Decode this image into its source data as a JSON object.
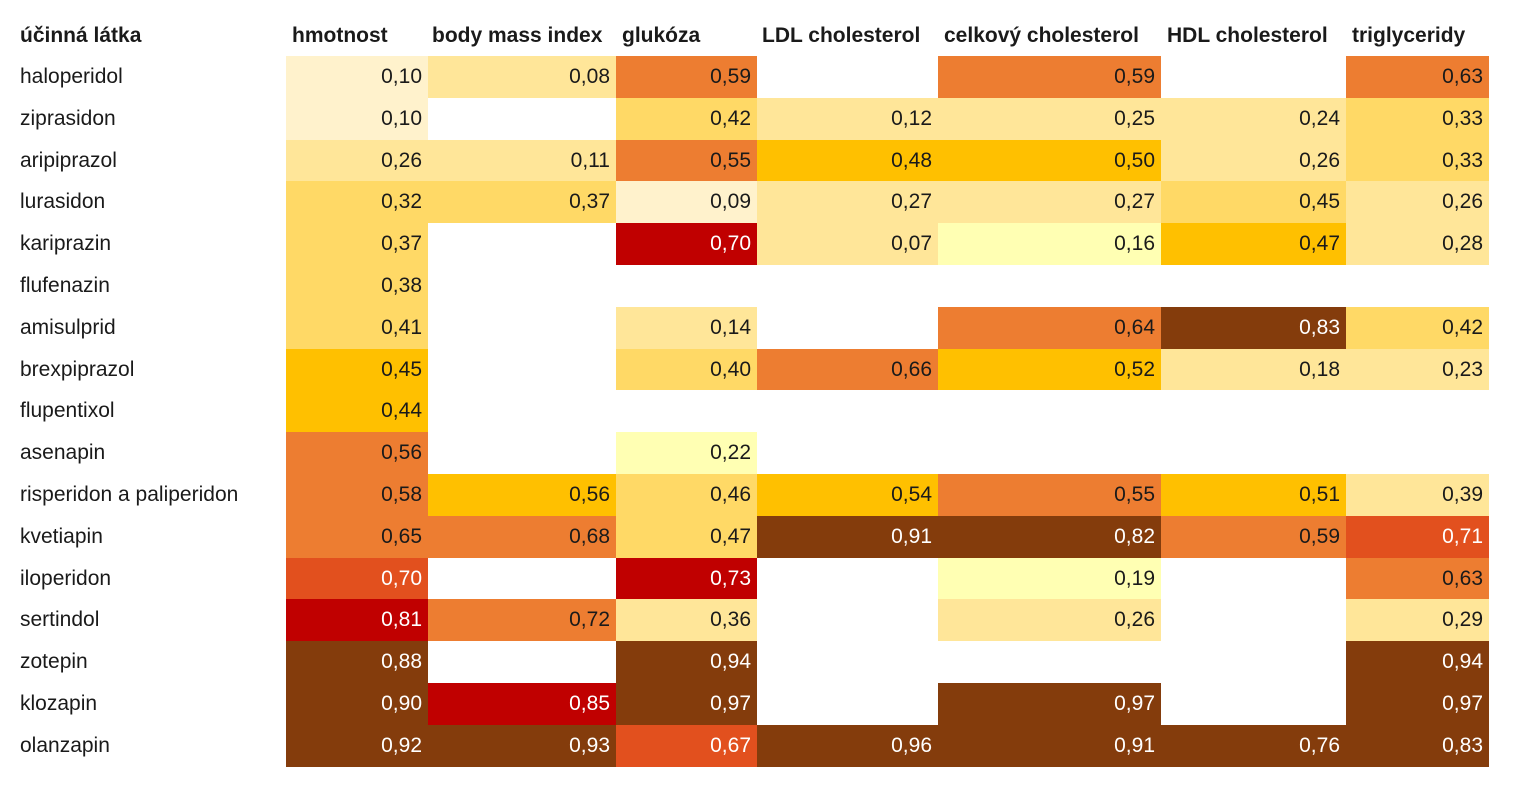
{
  "chart_data": {
    "type": "heatmap",
    "corner_label": "účinná látka",
    "columns": [
      "hmotnost",
      "body mass index",
      "glukóza",
      "LDL cholesterol",
      "celkový cholesterol",
      "HDL cholesterol",
      "triglyceridy"
    ],
    "rows": [
      {
        "name": "haloperidol",
        "values": [
          "0,10",
          "0,08",
          "0,59",
          null,
          "0,59",
          null,
          "0,63"
        ]
      },
      {
        "name": "ziprasidon",
        "values": [
          "0,10",
          null,
          "0,42",
          "0,12",
          "0,25",
          "0,24",
          "0,33"
        ]
      },
      {
        "name": "aripiprazol",
        "values": [
          "0,26",
          "0,11",
          "0,55",
          "0,48",
          "0,50",
          "0,26",
          "0,33"
        ]
      },
      {
        "name": "lurasidon",
        "values": [
          "0,32",
          "0,37",
          "0,09",
          "0,27",
          "0,27",
          "0,45",
          "0,26"
        ]
      },
      {
        "name": "kariprazin",
        "values": [
          "0,37",
          null,
          "0,70",
          "0,07",
          "0,16",
          "0,47",
          "0,28"
        ]
      },
      {
        "name": "flufenazin",
        "values": [
          "0,38",
          null,
          null,
          null,
          null,
          null,
          null
        ]
      },
      {
        "name": "amisulprid",
        "values": [
          "0,41",
          null,
          "0,14",
          null,
          "0,64",
          "0,83",
          "0,42"
        ]
      },
      {
        "name": "brexpiprazol",
        "values": [
          "0,45",
          null,
          "0,40",
          "0,66",
          "0,52",
          "0,18",
          "0,23"
        ]
      },
      {
        "name": "flupentixol",
        "values": [
          "0,44",
          null,
          null,
          null,
          null,
          null,
          null
        ]
      },
      {
        "name": "asenapin",
        "values": [
          "0,56",
          null,
          "0,22",
          null,
          null,
          null,
          null
        ]
      },
      {
        "name": "risperidon a paliperidon",
        "values": [
          "0,58",
          "0,56",
          "0,46",
          "0,54",
          "0,55",
          "0,51",
          "0,39"
        ]
      },
      {
        "name": "kvetiapin",
        "values": [
          "0,65",
          "0,68",
          "0,47",
          "0,91",
          "0,82",
          "0,59",
          "0,71"
        ]
      },
      {
        "name": "iloperidon",
        "values": [
          "0,70",
          null,
          "0,73",
          null,
          "0,19",
          null,
          "0,63"
        ]
      },
      {
        "name": "sertindol",
        "values": [
          "0,81",
          "0,72",
          "0,36",
          null,
          "0,26",
          null,
          "0,29"
        ]
      },
      {
        "name": "zotepin",
        "values": [
          "0,88",
          null,
          "0,94",
          null,
          null,
          null,
          "0,94"
        ]
      },
      {
        "name": "klozapin",
        "values": [
          "0,90",
          "0,85",
          "0,97",
          null,
          "0,97",
          null,
          "0,97"
        ]
      },
      {
        "name": "olanzapin",
        "values": [
          "0,92",
          "0,93",
          "0,67",
          "0,96",
          "0,91",
          "0,76",
          "0,83"
        ]
      }
    ],
    "fills": [
      [
        "#FFF2CC",
        "#FFE699",
        "#ED7D31",
        null,
        "#ED7D31",
        null,
        "#ED7D31"
      ],
      [
        "#FFF2CC",
        null,
        "#FFD966",
        "#FFE699",
        "#FFE699",
        "#FFE699",
        "#FFD966"
      ],
      [
        "#FFE699",
        "#FFE699",
        "#ED7D31",
        "#FFC000",
        "#FFC000",
        "#FFE699",
        "#FFD966"
      ],
      [
        "#FFD966",
        "#FFD966",
        "#FFF2CC",
        "#FFE699",
        "#FFE699",
        "#FFD966",
        "#FFE699"
      ],
      [
        "#FFD966",
        null,
        "#C00000",
        "#FFE699",
        "#FFFFB3",
        "#FFC000",
        "#FFE699"
      ],
      [
        "#FFD966",
        null,
        null,
        null,
        null,
        null,
        null
      ],
      [
        "#FFD966",
        null,
        "#FFE699",
        null,
        "#ED7D31",
        "#843C0C",
        "#FFD966"
      ],
      [
        "#FFC000",
        null,
        "#FFD966",
        "#ED7D31",
        "#FFC000",
        "#FFE699",
        "#FFE699"
      ],
      [
        "#FFC000",
        null,
        null,
        null,
        null,
        null,
        null
      ],
      [
        "#ED7D31",
        null,
        "#FFFFB3",
        null,
        null,
        null,
        null
      ],
      [
        "#ED7D31",
        "#FFC000",
        "#FFD966",
        "#FFC000",
        "#ED7D31",
        "#FFC000",
        "#FFE699"
      ],
      [
        "#ED7D31",
        "#ED7D31",
        "#FFD966",
        "#843C0C",
        "#843C0C",
        "#ED7D31",
        "#E2501E"
      ],
      [
        "#E2501E",
        null,
        "#C00000",
        null,
        "#FFFFB3",
        null,
        "#ED7D31"
      ],
      [
        "#C00000",
        "#ED7D31",
        "#FFE699",
        null,
        "#FFE699",
        null,
        "#FFE699"
      ],
      [
        "#843C0C",
        null,
        "#843C0C",
        null,
        null,
        null,
        "#843C0C"
      ],
      [
        "#843C0C",
        "#C00000",
        "#843C0C",
        null,
        "#843C0C",
        null,
        "#843C0C"
      ],
      [
        "#843C0C",
        "#843C0C",
        "#E2501E",
        "#843C0C",
        "#843C0C",
        "#843C0C",
        "#843C0C"
      ]
    ]
  }
}
